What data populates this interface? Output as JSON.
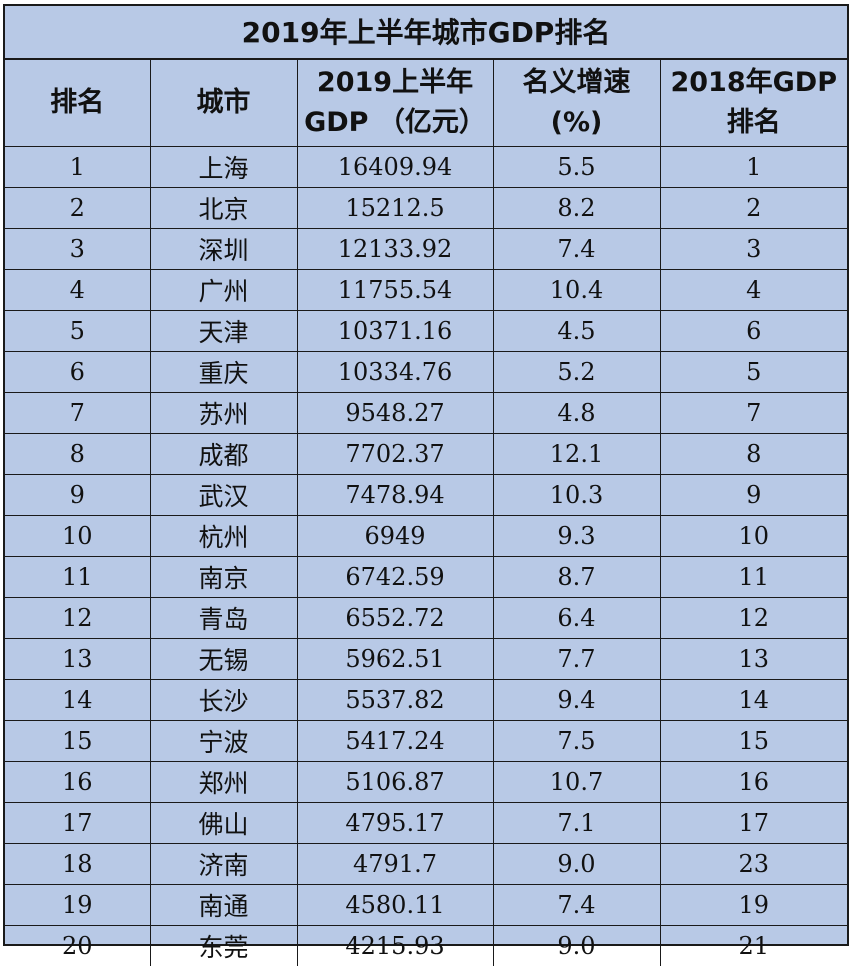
{
  "title": "2019年上半年城市GDP排名",
  "headers": {
    "rank": "排名",
    "city": "城市",
    "gdp_line1": "2019上半年",
    "gdp_line2": "GDP （亿元）",
    "growth_line1": "名义增速",
    "growth_line2": "(%)",
    "rank2018_line1": "2018年GDP",
    "rank2018_line2": "排名"
  },
  "rows": [
    {
      "rank": "1",
      "city": "上海",
      "gdp": "16409.94",
      "growth": "5.5",
      "rank2018": "1"
    },
    {
      "rank": "2",
      "city": "北京",
      "gdp": "15212.5",
      "growth": "8.2",
      "rank2018": "2"
    },
    {
      "rank": "3",
      "city": "深圳",
      "gdp": "12133.92",
      "growth": "7.4",
      "rank2018": "3"
    },
    {
      "rank": "4",
      "city": "广州",
      "gdp": "11755.54",
      "growth": "10.4",
      "rank2018": "4"
    },
    {
      "rank": "5",
      "city": "天津",
      "gdp": "10371.16",
      "growth": "4.5",
      "rank2018": "6"
    },
    {
      "rank": "6",
      "city": "重庆",
      "gdp": "10334.76",
      "growth": "5.2",
      "rank2018": "5"
    },
    {
      "rank": "7",
      "city": "苏州",
      "gdp": "9548.27",
      "growth": "4.8",
      "rank2018": "7"
    },
    {
      "rank": "8",
      "city": "成都",
      "gdp": "7702.37",
      "growth": "12.1",
      "rank2018": "8"
    },
    {
      "rank": "9",
      "city": "武汉",
      "gdp": "7478.94",
      "growth": "10.3",
      "rank2018": "9"
    },
    {
      "rank": "10",
      "city": "杭州",
      "gdp": "6949",
      "growth": "9.3",
      "rank2018": "10"
    },
    {
      "rank": "11",
      "city": "南京",
      "gdp": "6742.59",
      "growth": "8.7",
      "rank2018": "11"
    },
    {
      "rank": "12",
      "city": "青岛",
      "gdp": "6552.72",
      "growth": "6.4",
      "rank2018": "12"
    },
    {
      "rank": "13",
      "city": "无锡",
      "gdp": "5962.51",
      "growth": "7.7",
      "rank2018": "13"
    },
    {
      "rank": "14",
      "city": "长沙",
      "gdp": "5537.82",
      "growth": "9.4",
      "rank2018": "14"
    },
    {
      "rank": "15",
      "city": "宁波",
      "gdp": "5417.24",
      "growth": "7.5",
      "rank2018": "15"
    },
    {
      "rank": "16",
      "city": "郑州",
      "gdp": "5106.87",
      "growth": "10.7",
      "rank2018": "16"
    },
    {
      "rank": "17",
      "city": "佛山",
      "gdp": "4795.17",
      "growth": "7.1",
      "rank2018": "17"
    },
    {
      "rank": "18",
      "city": "济南",
      "gdp": "4791.7",
      "growth": "9.0",
      "rank2018": "23"
    },
    {
      "rank": "19",
      "city": "南通",
      "gdp": "4580.11",
      "growth": "7.4",
      "rank2018": "19"
    },
    {
      "rank": "20",
      "city": "东莞",
      "gdp": "4215.93",
      "growth": "9.0",
      "rank2018": "21"
    }
  ]
}
